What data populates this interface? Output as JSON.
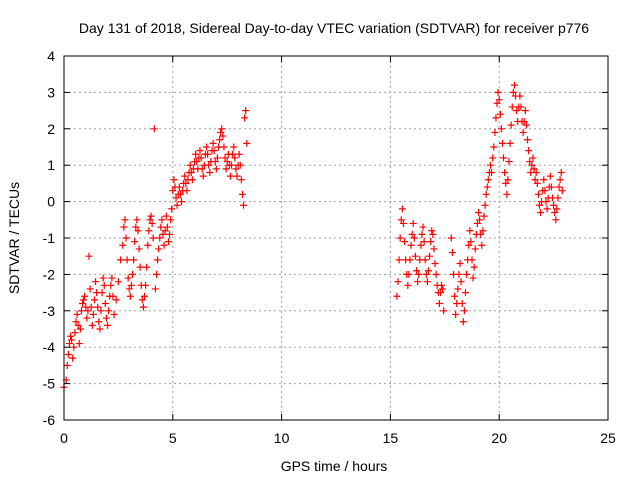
{
  "chart_data": {
    "type": "scatter",
    "title": "Day 131 of 2018, Sidereal Day-to-day VTEC variation (SDTVAR) for receiver p776",
    "xlabel": "GPS time / hours",
    "ylabel": "SDTVAR / TECUs",
    "xlim": [
      0,
      25
    ],
    "ylim": [
      -6,
      4
    ],
    "xticks": [
      0,
      5,
      10,
      15,
      20,
      25
    ],
    "yticks": [
      -6,
      -5,
      -4,
      -3,
      -2,
      -1,
      0,
      1,
      2,
      3,
      4
    ],
    "grid": true,
    "marker": "+",
    "color": "#ff0000",
    "series": [
      {
        "name": "SDTVAR",
        "points": [
          [
            0.0,
            -5.1
          ],
          [
            0.1,
            -4.9
          ],
          [
            0.15,
            -4.5
          ],
          [
            0.2,
            -4.2
          ],
          [
            0.25,
            -3.9
          ],
          [
            0.3,
            -3.7
          ],
          [
            0.35,
            -3.8
          ],
          [
            0.4,
            -4.3
          ],
          [
            0.45,
            -4.0
          ],
          [
            0.5,
            -3.6
          ],
          [
            0.55,
            -3.3
          ],
          [
            0.6,
            -3.1
          ],
          [
            0.65,
            -3.4
          ],
          [
            0.7,
            -3.9
          ],
          [
            0.75,
            -3.5
          ],
          [
            0.8,
            -3.0
          ],
          [
            0.85,
            -2.8
          ],
          [
            0.9,
            -2.7
          ],
          [
            0.95,
            -2.6
          ],
          [
            1.0,
            -2.9
          ],
          [
            1.05,
            -3.2
          ],
          [
            1.1,
            -3.0
          ],
          [
            1.15,
            -1.5
          ],
          [
            1.2,
            -2.4
          ],
          [
            1.25,
            -2.9
          ],
          [
            1.3,
            -3.4
          ],
          [
            1.35,
            -3.1
          ],
          [
            1.4,
            -2.7
          ],
          [
            1.45,
            -2.2
          ],
          [
            1.5,
            -2.5
          ],
          [
            1.55,
            -2.9
          ],
          [
            1.6,
            -3.3
          ],
          [
            1.65,
            -3.5
          ],
          [
            1.7,
            -3.0
          ],
          [
            1.75,
            -2.5
          ],
          [
            1.8,
            -2.1
          ],
          [
            1.85,
            -2.3
          ],
          [
            1.9,
            -2.8
          ],
          [
            1.95,
            -3.2
          ],
          [
            2.0,
            -3.4
          ],
          [
            2.05,
            -3.0
          ],
          [
            2.1,
            -2.6
          ],
          [
            2.15,
            -2.3
          ],
          [
            2.2,
            -2.1
          ],
          [
            2.25,
            -2.6
          ],
          [
            2.3,
            -3.1
          ],
          [
            2.4,
            -2.7
          ],
          [
            2.5,
            -2.2
          ],
          [
            2.6,
            -1.6
          ],
          [
            2.7,
            -1.2
          ],
          [
            2.75,
            -0.7
          ],
          [
            2.8,
            -0.5
          ],
          [
            2.85,
            -1.0
          ],
          [
            2.9,
            -1.6
          ],
          [
            2.95,
            -2.1
          ],
          [
            3.0,
            -2.4
          ],
          [
            3.05,
            -2.6
          ],
          [
            3.1,
            -2.3
          ],
          [
            3.15,
            -2.0
          ],
          [
            3.2,
            -1.6
          ],
          [
            3.25,
            -1.1
          ],
          [
            3.3,
            -0.7
          ],
          [
            3.35,
            -0.5
          ],
          [
            3.4,
            -0.8
          ],
          [
            3.45,
            -1.3
          ],
          [
            3.5,
            -1.8
          ],
          [
            3.55,
            -2.3
          ],
          [
            3.6,
            -2.7
          ],
          [
            3.65,
            -2.9
          ],
          [
            3.7,
            -2.6
          ],
          [
            3.75,
            -2.3
          ],
          [
            3.8,
            -1.8
          ],
          [
            3.85,
            -1.2
          ],
          [
            3.9,
            -0.8
          ],
          [
            3.95,
            -0.5
          ],
          [
            4.0,
            -0.4
          ],
          [
            4.05,
            -0.6
          ],
          [
            4.1,
            -1.0
          ],
          [
            4.15,
            2.0
          ],
          [
            4.2,
            -2.4
          ],
          [
            4.25,
            -2.0
          ],
          [
            4.3,
            -1.6
          ],
          [
            4.35,
            -1.3
          ],
          [
            4.4,
            -1.0
          ],
          [
            4.45,
            -0.7
          ],
          [
            4.5,
            -0.5
          ],
          [
            4.55,
            -0.9
          ],
          [
            4.6,
            -1.2
          ],
          [
            4.65,
            -0.8
          ],
          [
            4.7,
            -0.4
          ],
          [
            4.75,
            -0.7
          ],
          [
            4.8,
            -1.1
          ],
          [
            4.85,
            -0.9
          ],
          [
            4.9,
            -0.5
          ],
          [
            4.95,
            -0.2
          ],
          [
            5.0,
            0.3
          ],
          [
            5.05,
            0.6
          ],
          [
            5.1,
            0.4
          ],
          [
            5.15,
            0.1
          ],
          [
            5.2,
            -0.1
          ],
          [
            5.25,
            0.2
          ],
          [
            5.3,
            0.4
          ],
          [
            5.35,
            0.2
          ],
          [
            5.4,
            0.0
          ],
          [
            5.45,
            0.3
          ],
          [
            5.5,
            0.5
          ],
          [
            5.55,
            0.7
          ],
          [
            5.6,
            0.5
          ],
          [
            5.65,
            0.3
          ],
          [
            5.7,
            0.6
          ],
          [
            5.75,
            0.8
          ],
          [
            5.8,
            1.0
          ],
          [
            5.85,
            0.8
          ],
          [
            5.9,
            0.6
          ],
          [
            5.95,
            0.9
          ],
          [
            6.0,
            1.1
          ],
          [
            6.05,
            1.3
          ],
          [
            6.1,
            1.1
          ],
          [
            6.15,
            0.9
          ],
          [
            6.2,
            1.2
          ],
          [
            6.25,
            1.4
          ],
          [
            6.3,
            1.2
          ],
          [
            6.35,
            0.9
          ],
          [
            6.4,
            0.7
          ],
          [
            6.45,
            1.0
          ],
          [
            6.5,
            1.3
          ],
          [
            6.55,
            1.5
          ],
          [
            6.6,
            1.3
          ],
          [
            6.65,
            1.0
          ],
          [
            6.7,
            0.8
          ],
          [
            6.75,
            1.1
          ],
          [
            6.8,
            1.4
          ],
          [
            6.85,
            1.6
          ],
          [
            6.9,
            1.4
          ],
          [
            6.95,
            1.1
          ],
          [
            7.0,
            0.9
          ],
          [
            7.05,
            1.2
          ],
          [
            7.1,
            1.5
          ],
          [
            7.15,
            1.7
          ],
          [
            7.2,
            1.9
          ],
          [
            7.25,
            2.0
          ],
          [
            7.3,
            1.8
          ],
          [
            7.35,
            1.5
          ],
          [
            7.4,
            1.2
          ],
          [
            7.45,
            0.9
          ],
          [
            7.5,
            1.1
          ],
          [
            7.55,
            1.3
          ],
          [
            7.6,
            1.0
          ],
          [
            7.65,
            0.7
          ],
          [
            7.7,
            1.0
          ],
          [
            7.75,
            1.3
          ],
          [
            7.8,
            1.5
          ],
          [
            7.85,
            1.2
          ],
          [
            7.9,
            0.9
          ],
          [
            7.95,
            0.7
          ],
          [
            8.0,
            1.0
          ],
          [
            8.05,
            1.3
          ],
          [
            8.1,
            1.0
          ],
          [
            8.15,
            0.6
          ],
          [
            8.2,
            0.2
          ],
          [
            8.25,
            -0.1
          ],
          [
            8.3,
            2.3
          ],
          [
            8.35,
            2.5
          ],
          [
            8.4,
            1.6
          ],
          [
            15.3,
            -2.6
          ],
          [
            15.35,
            -2.2
          ],
          [
            15.4,
            -1.6
          ],
          [
            15.45,
            -1.0
          ],
          [
            15.5,
            -0.5
          ],
          [
            15.55,
            -0.2
          ],
          [
            15.6,
            -0.6
          ],
          [
            15.65,
            -1.1
          ],
          [
            15.7,
            -1.6
          ],
          [
            15.75,
            -2.0
          ],
          [
            15.8,
            -2.3
          ],
          [
            15.85,
            -2.0
          ],
          [
            15.9,
            -1.6
          ],
          [
            15.95,
            -1.2
          ],
          [
            16.0,
            -0.9
          ],
          [
            16.05,
            -0.6
          ],
          [
            16.1,
            -1.0
          ],
          [
            16.15,
            -1.5
          ],
          [
            16.2,
            -1.9
          ],
          [
            16.25,
            -2.2
          ],
          [
            16.3,
            -2.0
          ],
          [
            16.35,
            -1.6
          ],
          [
            16.4,
            -1.2
          ],
          [
            16.45,
            -0.9
          ],
          [
            16.5,
            -0.7
          ],
          [
            16.55,
            -1.1
          ],
          [
            16.6,
            -1.6
          ],
          [
            16.65,
            -2.0
          ],
          [
            16.7,
            -2.2
          ],
          [
            16.75,
            -1.9
          ],
          [
            16.8,
            -1.5
          ],
          [
            16.85,
            -1.1
          ],
          [
            16.9,
            -0.8
          ],
          [
            16.95,
            -0.9
          ],
          [
            17.0,
            -1.3
          ],
          [
            17.05,
            -1.7
          ],
          [
            17.1,
            -2.0
          ],
          [
            17.15,
            -2.3
          ],
          [
            17.2,
            -2.5
          ],
          [
            17.25,
            -2.8
          ],
          [
            17.3,
            -2.5
          ],
          [
            17.35,
            -2.3
          ],
          [
            17.4,
            -2.4
          ],
          [
            17.45,
            -3.0
          ],
          [
            17.8,
            -1.0
          ],
          [
            17.85,
            -1.4
          ],
          [
            17.9,
            -2.0
          ],
          [
            17.95,
            -2.6
          ],
          [
            18.0,
            -3.1
          ],
          [
            18.05,
            -2.8
          ],
          [
            18.1,
            -2.4
          ],
          [
            18.15,
            -2.0
          ],
          [
            18.2,
            -1.7
          ],
          [
            18.25,
            -2.2
          ],
          [
            18.3,
            -2.8
          ],
          [
            18.35,
            -3.3
          ],
          [
            18.4,
            -3.0
          ],
          [
            18.45,
            -2.5
          ],
          [
            18.5,
            -2.0
          ],
          [
            18.55,
            -1.6
          ],
          [
            18.6,
            -1.2
          ],
          [
            18.65,
            -0.8
          ],
          [
            18.7,
            -1.1
          ],
          [
            18.75,
            -1.6
          ],
          [
            18.8,
            -2.1
          ],
          [
            18.85,
            -1.8
          ],
          [
            18.9,
            -1.3
          ],
          [
            18.95,
            -0.9
          ],
          [
            19.0,
            -0.6
          ],
          [
            19.05,
            -0.3
          ],
          [
            19.1,
            -0.5
          ],
          [
            19.15,
            -0.9
          ],
          [
            19.2,
            -1.2
          ],
          [
            19.25,
            -0.8
          ],
          [
            19.3,
            -0.4
          ],
          [
            19.35,
            -0.1
          ],
          [
            19.4,
            0.2
          ],
          [
            19.45,
            0.4
          ],
          [
            19.5,
            0.6
          ],
          [
            19.55,
            0.8
          ],
          [
            19.6,
            1.0
          ],
          [
            19.65,
            0.8
          ],
          [
            19.7,
            1.2
          ],
          [
            19.75,
            1.5
          ],
          [
            19.8,
            1.9
          ],
          [
            19.85,
            2.3
          ],
          [
            19.9,
            2.7
          ],
          [
            19.95,
            3.0
          ],
          [
            20.0,
            2.8
          ],
          [
            20.05,
            2.4
          ],
          [
            20.1,
            2.0
          ],
          [
            20.15,
            1.6
          ],
          [
            20.2,
            1.2
          ],
          [
            20.25,
            0.8
          ],
          [
            20.3,
            0.5
          ],
          [
            20.35,
            0.2
          ],
          [
            20.4,
            0.6
          ],
          [
            20.45,
            1.1
          ],
          [
            20.5,
            1.6
          ],
          [
            20.55,
            2.1
          ],
          [
            20.6,
            2.6
          ],
          [
            20.65,
            3.0
          ],
          [
            20.7,
            3.2
          ],
          [
            20.75,
            2.9
          ],
          [
            20.8,
            2.5
          ],
          [
            20.85,
            2.2
          ],
          [
            20.9,
            2.6
          ],
          [
            20.95,
            2.9
          ],
          [
            21.0,
            2.6
          ],
          [
            21.05,
            2.2
          ],
          [
            21.1,
            1.9
          ],
          [
            21.15,
            2.2
          ],
          [
            21.2,
            2.5
          ],
          [
            21.25,
            2.1
          ],
          [
            21.3,
            1.7
          ],
          [
            21.35,
            1.4
          ],
          [
            21.4,
            1.1
          ],
          [
            21.45,
            0.8
          ],
          [
            21.5,
            1.0
          ],
          [
            21.55,
            1.2
          ],
          [
            21.6,
            0.9
          ],
          [
            21.65,
            0.6
          ],
          [
            21.7,
            0.8
          ],
          [
            21.75,
            0.5
          ],
          [
            21.8,
            0.2
          ],
          [
            21.85,
            -0.1
          ],
          [
            21.9,
            -0.3
          ],
          [
            21.95,
            0.0
          ],
          [
            22.0,
            0.3
          ],
          [
            22.05,
            0.6
          ],
          [
            22.1,
            0.3
          ],
          [
            22.15,
            0.0
          ],
          [
            22.2,
            -0.2
          ],
          [
            22.25,
            0.1
          ],
          [
            22.3,
            0.4
          ],
          [
            22.35,
            0.7
          ],
          [
            22.4,
            0.4
          ],
          [
            22.45,
            0.1
          ],
          [
            22.5,
            -0.1
          ],
          [
            22.55,
            -0.3
          ],
          [
            22.6,
            -0.5
          ],
          [
            22.65,
            -0.2
          ],
          [
            22.7,
            0.1
          ],
          [
            22.75,
            0.4
          ],
          [
            22.8,
            0.6
          ],
          [
            22.85,
            0.8
          ],
          [
            22.9,
            0.3
          ]
        ]
      }
    ]
  }
}
